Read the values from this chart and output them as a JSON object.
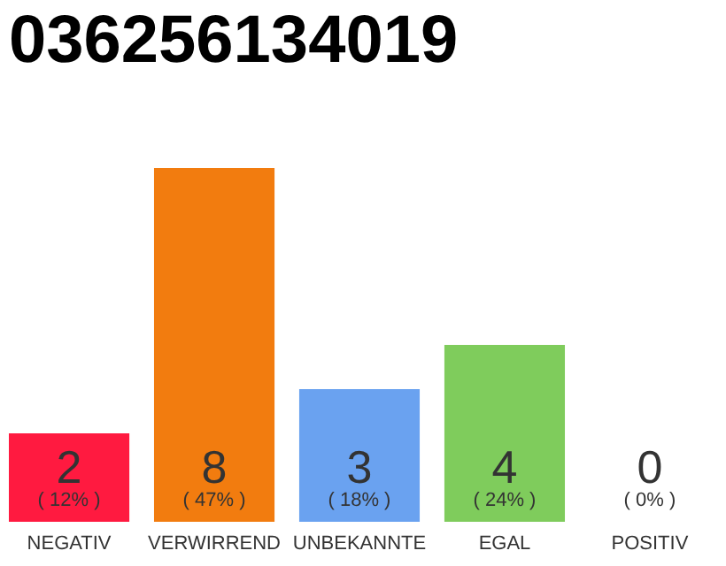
{
  "chart_data": {
    "type": "bar",
    "title": "036256134019",
    "categories": [
      "NEGATIV",
      "VERWIRREND",
      "UNBEKANNTE",
      "EGAL",
      "POSITIV"
    ],
    "values": [
      2,
      8,
      3,
      4,
      0
    ],
    "colors": [
      "#ff1a40",
      "#f27c0f",
      "#6aa2f0",
      "#7fcc5c",
      "#cccccc"
    ],
    "data_labels": true,
    "annotations": [
      "( 12% )",
      "( 47% )",
      "( 18% )",
      "( 24% )",
      "( 0% )"
    ],
    "grid": false
  }
}
